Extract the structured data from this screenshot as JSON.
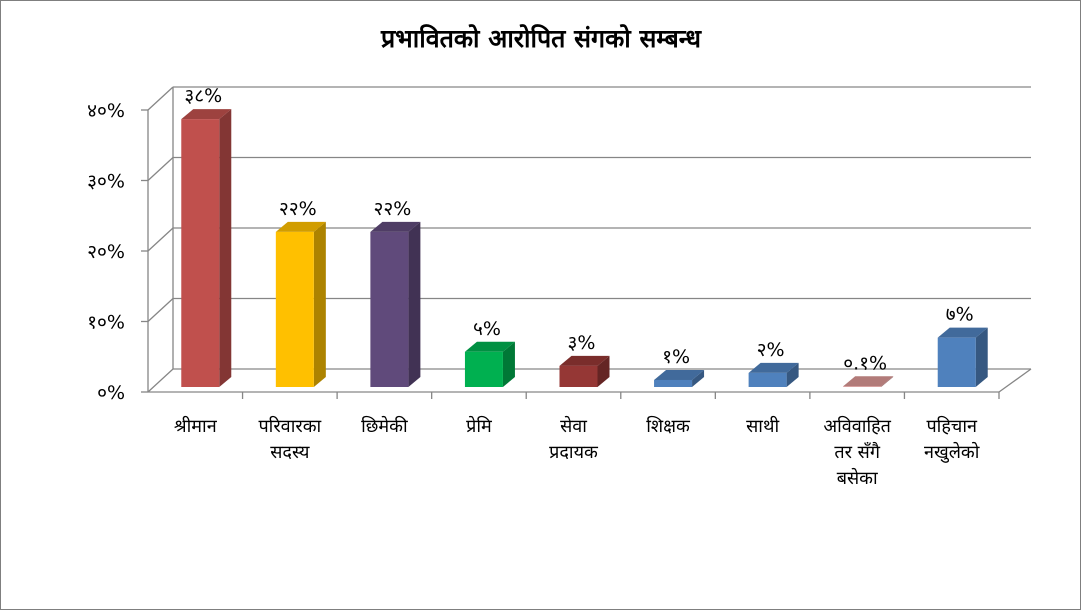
{
  "chart_data": {
    "type": "bar",
    "title": "प्रभावितको आरोपित संगको सम्बन्ध",
    "xlabel": "",
    "ylabel": "",
    "ylim": [
      0,
      40
    ],
    "grid": true,
    "legend": "none",
    "yticks": [
      "०%",
      "१०%",
      "२०%",
      "३०%",
      "४०%"
    ],
    "categories": [
      [
        "श्रीमान"
      ],
      [
        "परिवारका",
        "सदस्य"
      ],
      [
        "छिमेकी"
      ],
      [
        "प्रेमि"
      ],
      [
        "सेवा",
        "प्रदायक"
      ],
      [
        "शिक्षक"
      ],
      [
        "साथी"
      ],
      [
        "अविवाहित",
        "तर सँगै",
        "बसेका"
      ],
      [
        "पहिचान",
        "नखुलेको"
      ]
    ],
    "values": [
      38,
      22,
      22,
      5,
      3,
      1,
      2,
      0.1,
      7
    ],
    "data_labels": [
      "३८%",
      "२२%",
      "२२%",
      "५%",
      "३%",
      "१%",
      "२%",
      "०.१%",
      "७%"
    ],
    "colors": [
      "#c0504d",
      "#ffc000",
      "#604a7b",
      "#00b050",
      "#953735",
      "#4f81bd",
      "#4f81bd",
      "#d99694",
      "#4f81bd"
    ]
  }
}
